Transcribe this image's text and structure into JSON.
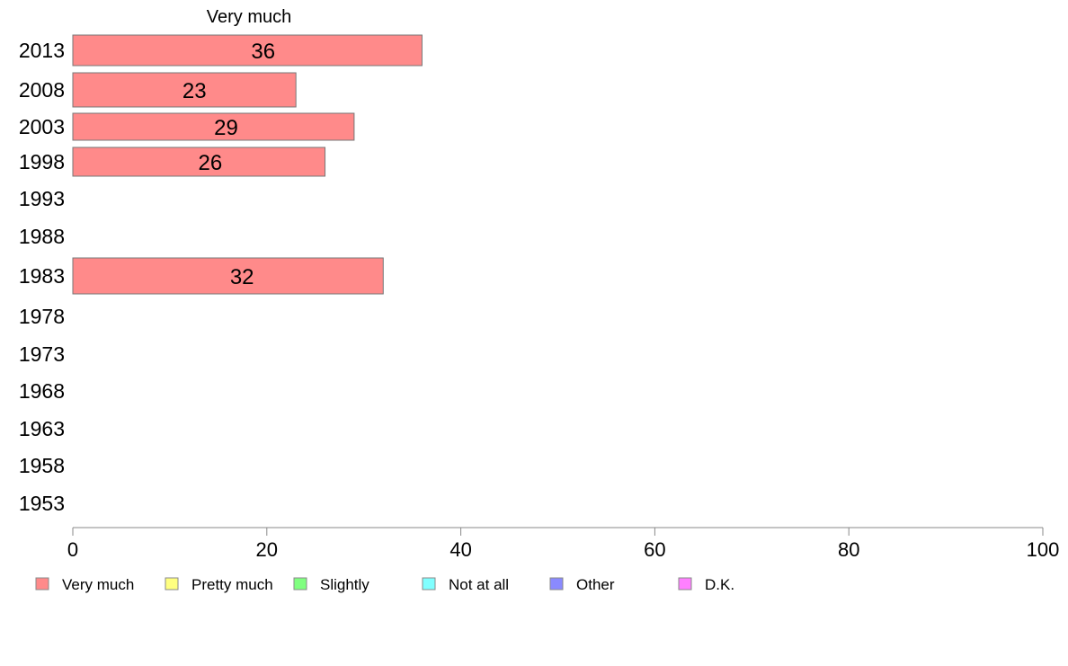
{
  "chart_data": {
    "type": "bar",
    "orientation": "horizontal",
    "column_title": "Very much",
    "categories": [
      "2013",
      "2008",
      "2003",
      "1998",
      "1993",
      "1988",
      "1983",
      "1978",
      "1973",
      "1968",
      "1963",
      "1958",
      "1953"
    ],
    "series": [
      {
        "name": "Very much",
        "color": "#ff8a8a",
        "values": [
          36,
          23,
          29,
          26,
          null,
          null,
          32,
          null,
          null,
          null,
          null,
          null,
          null
        ]
      },
      {
        "name": "Pretty much",
        "color": "#ffff80",
        "values": [
          null,
          null,
          null,
          null,
          null,
          null,
          null,
          null,
          null,
          null,
          null,
          null,
          null
        ]
      },
      {
        "name": "Slightly",
        "color": "#80ff80",
        "values": [
          null,
          null,
          null,
          null,
          null,
          null,
          null,
          null,
          null,
          null,
          null,
          null,
          null
        ]
      },
      {
        "name": "Not at all",
        "color": "#80ffff",
        "values": [
          null,
          null,
          null,
          null,
          null,
          null,
          null,
          null,
          null,
          null,
          null,
          null,
          null
        ]
      },
      {
        "name": "Other",
        "color": "#8a8aff",
        "values": [
          null,
          null,
          null,
          null,
          null,
          null,
          null,
          null,
          null,
          null,
          null,
          null,
          null
        ]
      },
      {
        "name": "D.K.",
        "color": "#ff80ff",
        "values": [
          null,
          null,
          null,
          null,
          null,
          null,
          null,
          null,
          null,
          null,
          null,
          null,
          null
        ]
      }
    ],
    "data_labels": [
      "36",
      "23",
      "29",
      "26",
      "",
      "",
      "32",
      "",
      "",
      "",
      "",
      "",
      ""
    ],
    "xlim": [
      0,
      100
    ],
    "xticks": [
      0,
      20,
      40,
      60,
      80,
      100
    ],
    "xtick_labels": [
      "0",
      "20",
      "40",
      "60",
      "80",
      "100"
    ],
    "grid": false,
    "legend_position": "bottom"
  }
}
